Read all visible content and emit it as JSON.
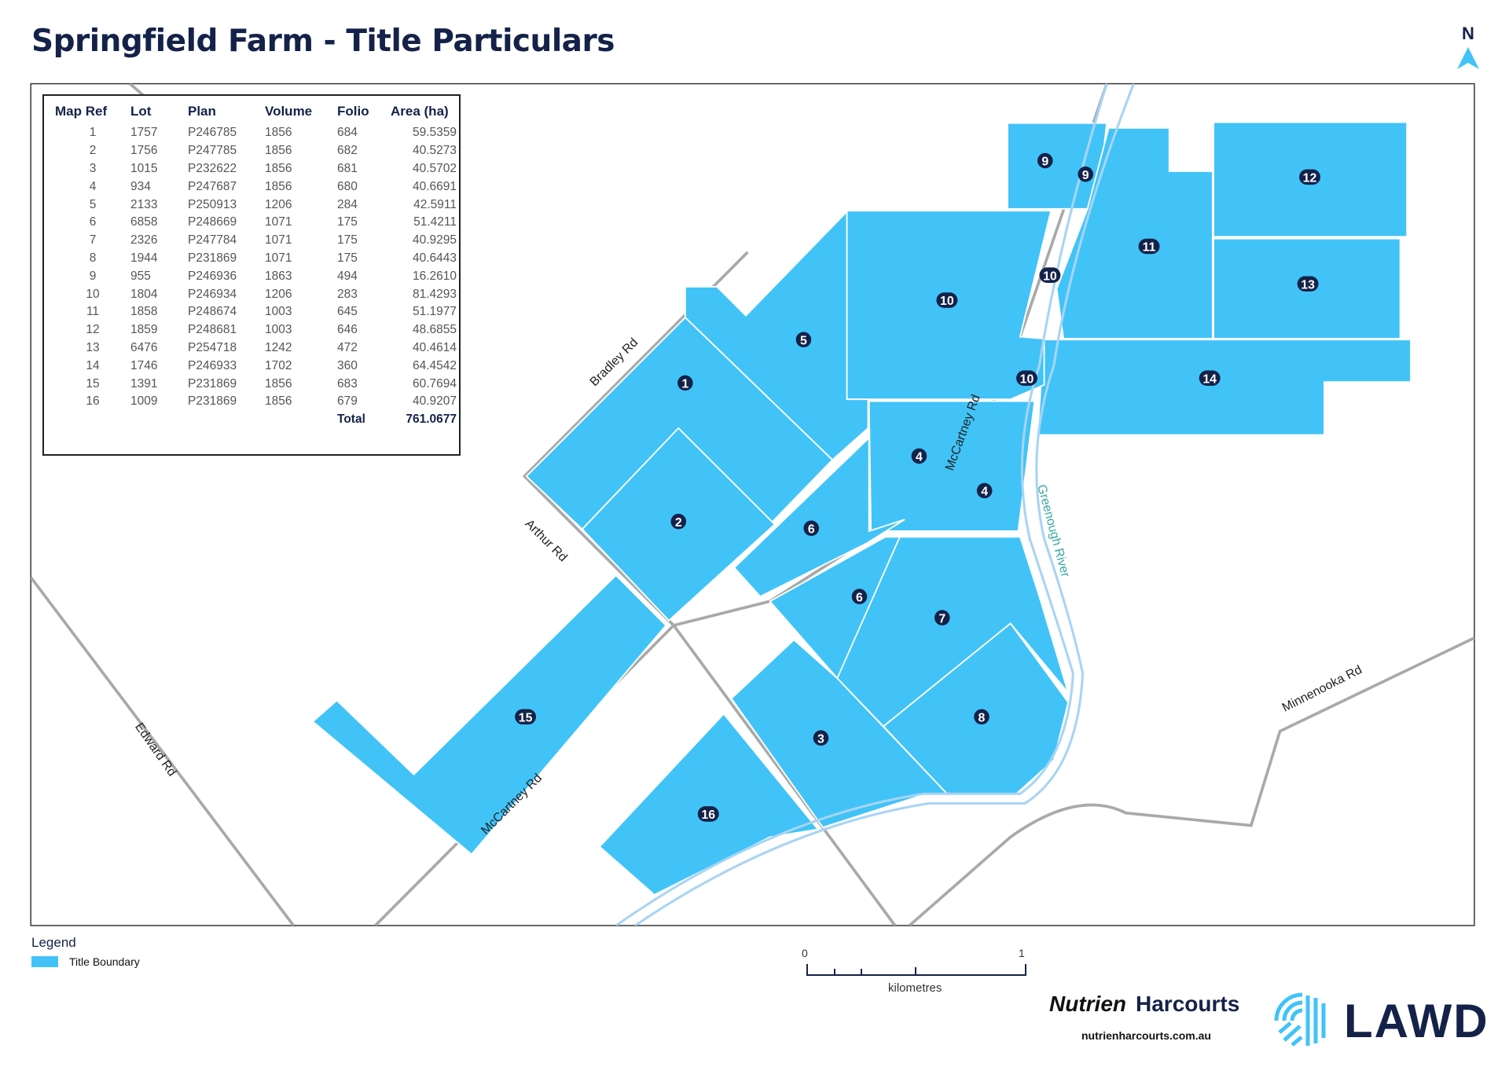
{
  "title": "Springfield Farm - Title Particulars",
  "north_label": "N",
  "table": {
    "headers": [
      "Map Ref",
      "Lot",
      "Plan",
      "Volume",
      "Folio",
      "Area (ha)"
    ],
    "rows": [
      [
        "1",
        "1757",
        "P246785",
        "1856",
        "684",
        "59.5359"
      ],
      [
        "2",
        "1756",
        "P247785",
        "1856",
        "682",
        "40.5273"
      ],
      [
        "3",
        "1015",
        "P232622",
        "1856",
        "681",
        "40.5702"
      ],
      [
        "4",
        "934",
        "P247687",
        "1856",
        "680",
        "40.6691"
      ],
      [
        "5",
        "2133",
        "P250913",
        "1206",
        "284",
        "42.5911"
      ],
      [
        "6",
        "6858",
        "P248669",
        "1071",
        "175",
        "51.4211"
      ],
      [
        "7",
        "2326",
        "P247784",
        "1071",
        "175",
        "40.9295"
      ],
      [
        "8",
        "1944",
        "P231869",
        "1071",
        "175",
        "40.6443"
      ],
      [
        "9",
        "955",
        "P246936",
        "1863",
        "494",
        "16.2610"
      ],
      [
        "10",
        "1804",
        "P246934",
        "1206",
        "283",
        "81.4293"
      ],
      [
        "11",
        "1858",
        "P248674",
        "1003",
        "645",
        "51.1977"
      ],
      [
        "12",
        "1859",
        "P248681",
        "1003",
        "646",
        "48.6855"
      ],
      [
        "13",
        "6476",
        "P254718",
        "1242",
        "472",
        "40.4614"
      ],
      [
        "14",
        "1746",
        "P246933",
        "1702",
        "360",
        "64.4542"
      ],
      [
        "15",
        "1391",
        "P231869",
        "1856",
        "683",
        "60.7694"
      ],
      [
        "16",
        "1009",
        "P231869",
        "1856",
        "679",
        "40.9207"
      ]
    ],
    "total_label": "Total",
    "total_value": "761.0677"
  },
  "parcel_labels": [
    "1",
    "2",
    "3",
    "4",
    "4",
    "5",
    "6",
    "6",
    "7",
    "8",
    "9",
    "9",
    "10",
    "10",
    "10",
    "11",
    "12",
    "13",
    "14",
    "15",
    "16"
  ],
  "road_labels": {
    "bradley": "Bradley Rd",
    "arthur": "Arthur Rd",
    "edward": "Edward Rd",
    "mccartney_n": "McCartney Rd",
    "mccartney_s": "McCartney Rd",
    "minnenooka": "Minnenooka Rd",
    "river": "Greenough River"
  },
  "legend": {
    "title": "Legend",
    "item": "Title Boundary"
  },
  "scale": {
    "start": "0",
    "end": "1",
    "unit": "kilometres"
  },
  "branding": {
    "nutrien": "Nutrien",
    "harcourts": "Harcourts",
    "url": "nutrienharcourts.com.au",
    "lawd": "LAWD"
  },
  "colors": {
    "parcel": "#41c3f7",
    "title": "#14224a",
    "road": "#a9a9a9",
    "river": "#a8d4f5"
  }
}
